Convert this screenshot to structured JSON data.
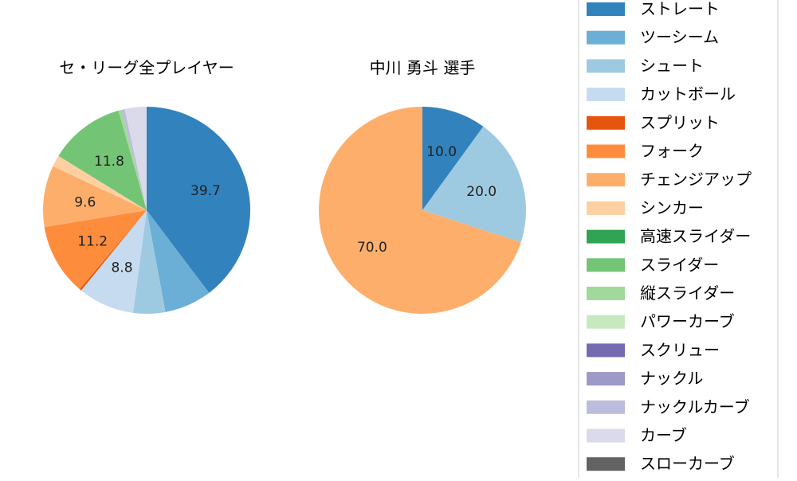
{
  "chart_data": [
    {
      "type": "pie",
      "title": "セ・リーグ全プレイヤー",
      "slices": [
        {
          "label": "ストレート",
          "value": 39.7,
          "color": "#3182bd",
          "show_label": true
        },
        {
          "label": "ツーシーム",
          "value": 7.4,
          "color": "#6baed6",
          "show_label": false
        },
        {
          "label": "シュート",
          "value": 5.0,
          "color": "#9ecae1",
          "show_label": false
        },
        {
          "label": "カットボール",
          "value": 8.8,
          "color": "#c6dbef",
          "show_label": true
        },
        {
          "label": "スプリット",
          "value": 0.3,
          "color": "#e6550d",
          "show_label": false
        },
        {
          "label": "フォーク",
          "value": 11.2,
          "color": "#fd8d3c",
          "show_label": true
        },
        {
          "label": "チェンジアップ",
          "value": 9.6,
          "color": "#fdae6b",
          "show_label": true
        },
        {
          "label": "シンカー",
          "value": 1.8,
          "color": "#fdd0a2",
          "show_label": false
        },
        {
          "label": "スライダー",
          "value": 11.8,
          "color": "#74c476",
          "show_label": true
        },
        {
          "label": "縦スライダー",
          "value": 0.5,
          "color": "#a1d99b",
          "show_label": false
        },
        {
          "label": "ナックルカーブ",
          "value": 0.5,
          "color": "#bcbddc",
          "show_label": false
        },
        {
          "label": "カーブ",
          "value": 3.4,
          "color": "#dadaeb",
          "show_label": false
        }
      ]
    },
    {
      "type": "pie",
      "title": "中川 勇斗  選手",
      "slices": [
        {
          "label": "ストレート",
          "value": 10.0,
          "color": "#3182bd",
          "show_label": true
        },
        {
          "label": "シュート",
          "value": 20.0,
          "color": "#9ecae1",
          "show_label": true
        },
        {
          "label": "チェンジアップ",
          "value": 70.0,
          "color": "#fdae6b",
          "show_label": true
        }
      ]
    }
  ],
  "legend": {
    "placement": "right",
    "items": [
      {
        "label": "ストレート",
        "color": "#3182bd"
      },
      {
        "label": "ツーシーム",
        "color": "#6baed6"
      },
      {
        "label": "シュート",
        "color": "#9ecae1"
      },
      {
        "label": "カットボール",
        "color": "#c6dbef"
      },
      {
        "label": "スプリット",
        "color": "#e6550d"
      },
      {
        "label": "フォーク",
        "color": "#fd8d3c"
      },
      {
        "label": "チェンジアップ",
        "color": "#fdae6b"
      },
      {
        "label": "シンカー",
        "color": "#fdd0a2"
      },
      {
        "label": "高速スライダー",
        "color": "#31a354"
      },
      {
        "label": "スライダー",
        "color": "#74c476"
      },
      {
        "label": "縦スライダー",
        "color": "#a1d99b"
      },
      {
        "label": "パワーカーブ",
        "color": "#c7e9c0"
      },
      {
        "label": "スクリュー",
        "color": "#756bb1"
      },
      {
        "label": "ナックル",
        "color": "#9e9ac8"
      },
      {
        "label": "ナックルカーブ",
        "color": "#bcbddc"
      },
      {
        "label": "カーブ",
        "color": "#dadaeb"
      },
      {
        "label": "スローカーブ",
        "color": "#636363"
      }
    ]
  }
}
